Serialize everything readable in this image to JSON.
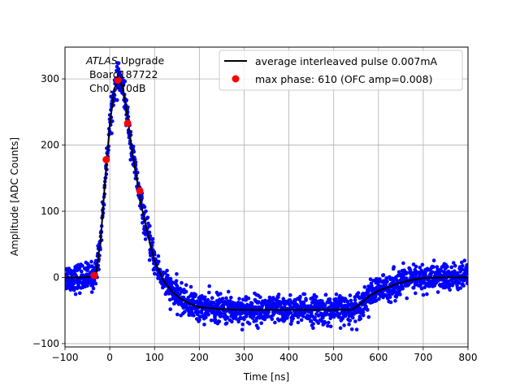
{
  "chart_data": {
    "type": "scatter",
    "title": "",
    "xlabel": "Time [ns]",
    "ylabel": "Amplitude [ADC Counts]",
    "xlim": [
      -100,
      800
    ],
    "ylim": [
      -105,
      348
    ],
    "xticks": [
      -100,
      0,
      100,
      200,
      300,
      400,
      500,
      600,
      700,
      800
    ],
    "yticks": [
      -100,
      0,
      100,
      200,
      300
    ],
    "grid": true,
    "legend_position": "top-right",
    "annotation": {
      "line1_italic": "ATLAS",
      "line1_rest": " Upgrade",
      "line2": " Board187722",
      "line3": " Ch0, -70dB"
    },
    "series": [
      {
        "name": "average interleaved pulse 0.007mA",
        "kind": "line",
        "color": "#000000",
        "x": [
          -100,
          -60,
          -40,
          -30,
          -20,
          -10,
          0,
          10,
          20,
          30,
          40,
          50,
          60,
          70,
          80,
          90,
          100,
          120,
          140,
          160,
          180,
          200,
          250,
          300,
          350,
          400,
          450,
          500,
          540,
          560,
          580,
          600,
          620,
          640,
          660,
          680,
          700,
          750,
          800
        ],
        "y": [
          0,
          0,
          1,
          8,
          60,
          150,
          230,
          285,
          300,
          285,
          240,
          190,
          150,
          110,
          80,
          50,
          25,
          -5,
          -22,
          -33,
          -40,
          -45,
          -48,
          -49,
          -49,
          -49,
          -49,
          -49,
          -49,
          -40,
          -28,
          -20,
          -15,
          -10,
          -6,
          -3,
          -1,
          0,
          0
        ]
      },
      {
        "name": "samples",
        "kind": "scatter",
        "color": "#0000ff",
        "noise": 14
      },
      {
        "name": "max phase: 610 (OFC amp=0.008)",
        "kind": "scatter",
        "color": "#ff0000",
        "x": [
          -35,
          -8,
          18,
          40,
          67
        ],
        "y": [
          3,
          178,
          298,
          233,
          131
        ]
      }
    ]
  }
}
